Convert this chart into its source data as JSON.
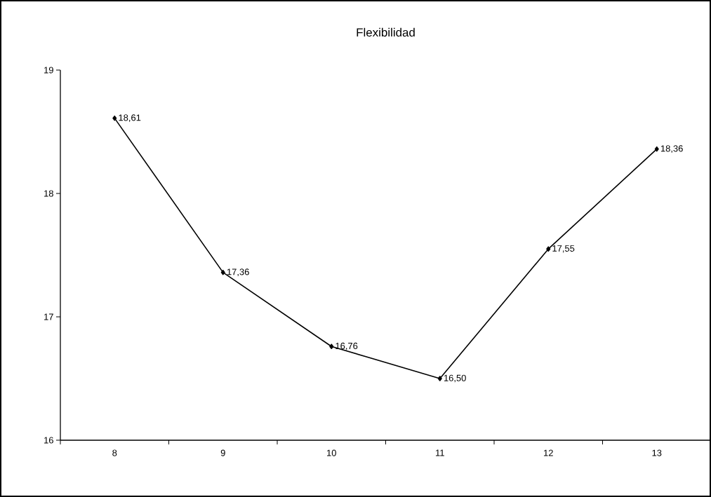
{
  "chart_data": {
    "type": "line",
    "title": "Flexibilidad",
    "categories": [
      "8",
      "9",
      "10",
      "11",
      "12",
      "13"
    ],
    "values": [
      18.61,
      17.36,
      16.76,
      16.5,
      17.55,
      18.36
    ],
    "value_labels": [
      "18,61",
      "17,36",
      "16,76",
      "16,50",
      "17,55",
      "18,36"
    ],
    "color": "#000000",
    "marker": "diamond",
    "ylim": [
      16,
      19
    ],
    "yticks": [
      16,
      17,
      18,
      19
    ]
  }
}
